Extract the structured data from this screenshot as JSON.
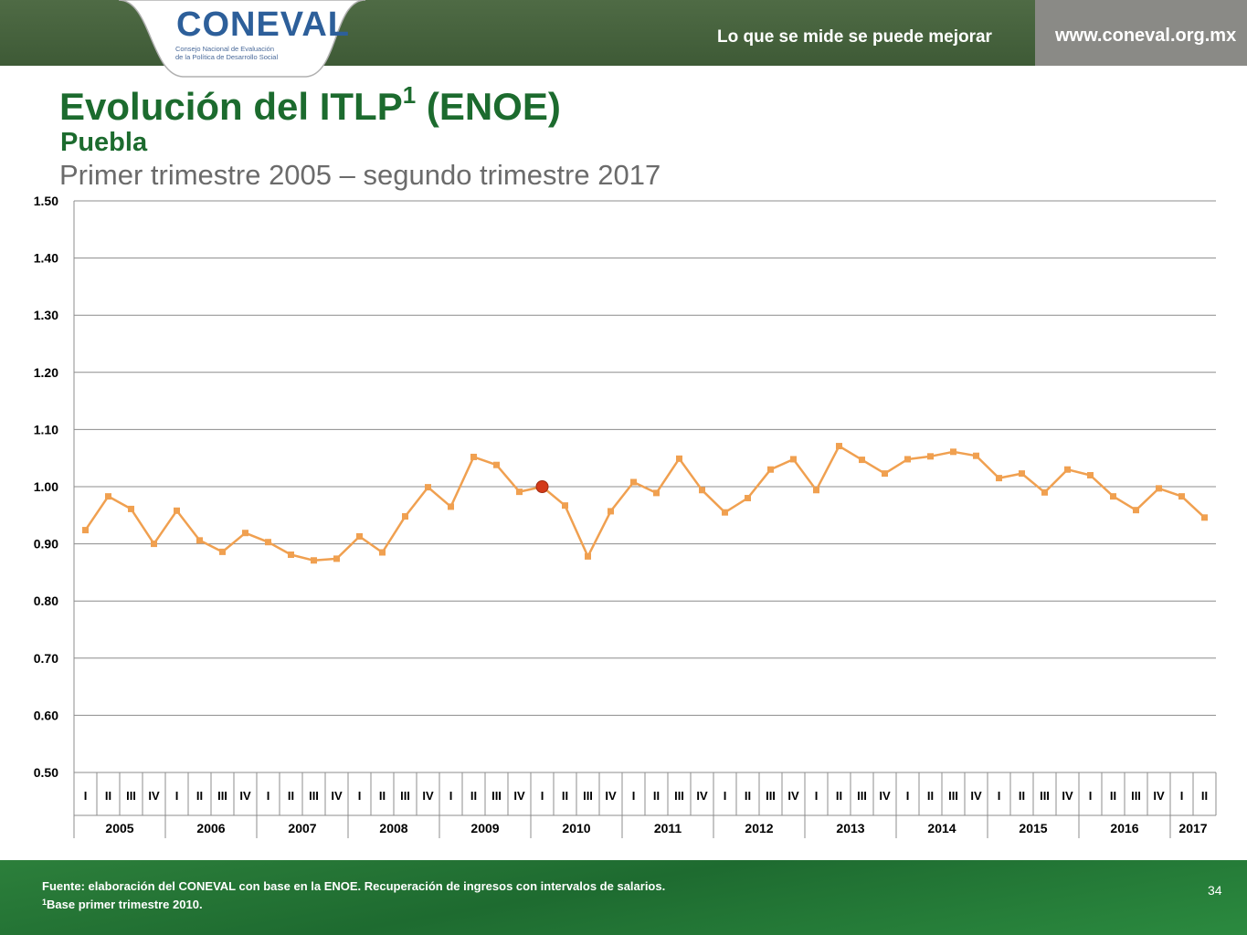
{
  "header": {
    "logo_text": "CONEVAL",
    "logo_subtitle": "Consejo Nacional de Evaluación\nde la Política de Desarrollo Social",
    "tagline": "Lo que se mide se puede mejorar",
    "url": "www.coneval.org.mx"
  },
  "title": {
    "main": "Evolución del ITLP",
    "superscript": "1",
    "suffix": " (ENOE)",
    "subtitle": "Puebla",
    "period": "Primer trimestre 2005 – segundo trimestre 2017"
  },
  "colors": {
    "line": "#f0a050",
    "base_marker": "#d33a1a",
    "title_green": "#1c6b2e"
  },
  "chart_data": {
    "type": "line",
    "title": "",
    "xlabel": "",
    "ylabel": "",
    "ylim": [
      0.5,
      1.5
    ],
    "yticks": [
      "1.50",
      "1.40",
      "1.30",
      "1.20",
      "1.10",
      "1.00",
      "0.90",
      "0.80",
      "0.70",
      "0.60",
      "0.50"
    ],
    "grid": true,
    "years": [
      {
        "label": "2005",
        "quarters": [
          "I",
          "II",
          "III",
          "IV"
        ]
      },
      {
        "label": "2006",
        "quarters": [
          "I",
          "II",
          "III",
          "IV"
        ]
      },
      {
        "label": "2007",
        "quarters": [
          "I",
          "II",
          "III",
          "IV"
        ]
      },
      {
        "label": "2008",
        "quarters": [
          "I",
          "II",
          "III",
          "IV"
        ]
      },
      {
        "label": "2009",
        "quarters": [
          "I",
          "II",
          "III",
          "IV"
        ]
      },
      {
        "label": "2010",
        "quarters": [
          "I",
          "II",
          "III",
          "IV"
        ]
      },
      {
        "label": "2011",
        "quarters": [
          "I",
          "II",
          "III",
          "IV"
        ]
      },
      {
        "label": "2012",
        "quarters": [
          "I",
          "II",
          "III",
          "IV"
        ]
      },
      {
        "label": "2013",
        "quarters": [
          "I",
          "II",
          "III",
          "IV"
        ]
      },
      {
        "label": "2014",
        "quarters": [
          "I",
          "II",
          "III",
          "IV"
        ]
      },
      {
        "label": "2015",
        "quarters": [
          "I",
          "II",
          "III",
          "IV"
        ]
      },
      {
        "label": "2016",
        "quarters": [
          "I",
          "II",
          "III",
          "IV"
        ]
      },
      {
        "label": "2017",
        "quarters": [
          "I",
          "II"
        ]
      }
    ],
    "series": [
      {
        "values": [
          0.924,
          0.983,
          0.961,
          0.9,
          0.958,
          0.906,
          0.886,
          0.919,
          0.903,
          0.881,
          0.871,
          0.874,
          0.913,
          0.885,
          0.948,
          0.999,
          0.965,
          1.052,
          1.038,
          0.991,
          1.0,
          0.967,
          0.878,
          0.957,
          1.008,
          0.989,
          1.049,
          0.994,
          0.955,
          0.98,
          1.03,
          1.048,
          0.994,
          1.071,
          1.047,
          1.023,
          1.048,
          1.053,
          1.061,
          1.054,
          1.015,
          1.023,
          0.99,
          1.03,
          1.02,
          0.983,
          0.959,
          0.997,
          0.983,
          0.946
        ]
      }
    ],
    "base_point": {
      "year": "2010",
      "quarter": "I",
      "value": 1.0
    }
  },
  "footer": {
    "source": "Fuente: elaboración del CONEVAL con base en la ENOE. Recuperación de ingresos con intervalos de salarios.",
    "note_sup": "1",
    "note": "Base primer trimestre 2010.",
    "page_number": "34"
  }
}
